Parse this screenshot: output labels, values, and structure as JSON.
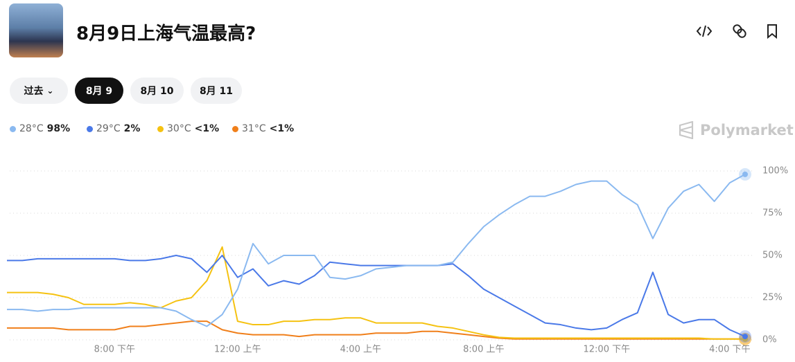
{
  "header": {
    "title": "8月9日上海气温最高?"
  },
  "tabs": [
    "过去",
    "8月 9",
    "8月 10",
    "8月 11"
  ],
  "brand": "Polymarket",
  "chart_data": {
    "type": "line",
    "categories": [
      null,
      null,
      null,
      null,
      null,
      null,
      null,
      "8:00 下午",
      null,
      null,
      null,
      null,
      null,
      null,
      null,
      "12:00 上午",
      null,
      null,
      null,
      null,
      null,
      null,
      null,
      "4:00 上午",
      null,
      null,
      null,
      null,
      null,
      null,
      null,
      "8:00 上午",
      null,
      null,
      null,
      null,
      null,
      null,
      null,
      "12:00 下午",
      null,
      null,
      null,
      null,
      null,
      null,
      null,
      "4:00 下午",
      null
    ],
    "series": [
      {
        "name": "28°C",
        "legend_value": "98%",
        "color": "#8ab9f0",
        "values": [
          18,
          18,
          17,
          18,
          18,
          19,
          19,
          19,
          19,
          19,
          19,
          17,
          12,
          8,
          15,
          30,
          57,
          45,
          50,
          50,
          50,
          37,
          36,
          38,
          42,
          43,
          44,
          44,
          44,
          46,
          57,
          67,
          74,
          80,
          85,
          85,
          88,
          92,
          94,
          94,
          86,
          80,
          60,
          78,
          88,
          92,
          82,
          93,
          98
        ]
      },
      {
        "name": "29°C",
        "legend_value": "2%",
        "color": "#4a79e8",
        "values": [
          47,
          47,
          48,
          48,
          48,
          48,
          48,
          48,
          47,
          47,
          48,
          50,
          48,
          40,
          50,
          37,
          42,
          32,
          35,
          33,
          38,
          46,
          45,
          44,
          44,
          44,
          44,
          44,
          44,
          45,
          38,
          30,
          25,
          20,
          15,
          10,
          9,
          7,
          6,
          7,
          12,
          16,
          40,
          15,
          10,
          12,
          12,
          6,
          2
        ]
      },
      {
        "name": "30°C",
        "legend_value": "<1%",
        "color": "#f5c211",
        "values": [
          28,
          28,
          28,
          27,
          25,
          21,
          21,
          21,
          22,
          21,
          19,
          23,
          25,
          35,
          55,
          11,
          9,
          9,
          11,
          11,
          12,
          12,
          13,
          13,
          10,
          10,
          10,
          10,
          8,
          7,
          5,
          3,
          1.5,
          1,
          1,
          1,
          1,
          1,
          1,
          1,
          1,
          1,
          1,
          1,
          1,
          1,
          0.5,
          0.5,
          0.5
        ]
      },
      {
        "name": "31°C",
        "legend_value": "<1%",
        "color": "#f07f1a",
        "values": [
          7,
          7,
          7,
          7,
          6,
          6,
          6,
          6,
          8,
          8,
          9,
          10,
          11,
          11,
          6,
          4,
          3,
          3,
          3,
          2,
          3,
          3,
          3,
          3,
          4,
          4,
          4,
          5,
          5,
          4,
          3,
          2,
          1,
          0.5,
          0.5,
          0.5,
          0.5,
          0.5,
          0.5,
          0.5,
          0.5,
          0.5,
          0.5,
          0.5,
          0.5,
          0.5,
          0.5,
          0.5,
          0.5
        ]
      }
    ],
    "ylim": [
      0,
      100
    ],
    "yticks": [
      {
        "value": 0,
        "label": "0%"
      },
      {
        "value": 25,
        "label": "25%"
      },
      {
        "value": 50,
        "label": "50%"
      },
      {
        "value": 75,
        "label": "75%"
      },
      {
        "value": 100,
        "label": "100%"
      }
    ],
    "grid": true
  }
}
